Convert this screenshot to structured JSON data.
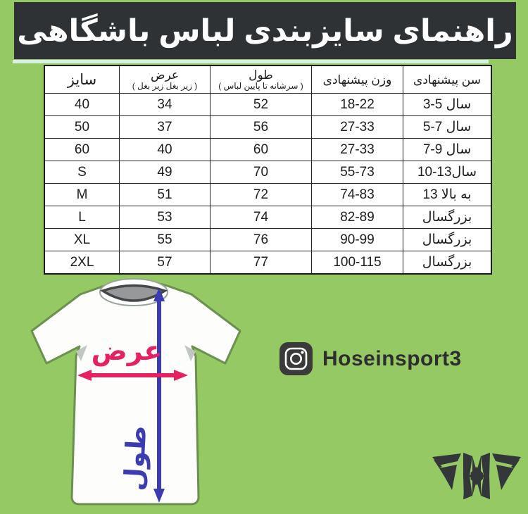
{
  "colors": {
    "background": "#95c964",
    "header_bg": "#2e3234",
    "header_text": "#ffffff",
    "table_border": "#262626",
    "accent_strip": "#d8efe6",
    "width_arrow": "#e6215f",
    "length_arrow": "#3b3bb2",
    "instagram_bg": "#3a3a3a",
    "logo": "#33373a",
    "collar_gray": "#97989a"
  },
  "header": {
    "title": "راهنمای سایزبندی لباس باشگاهی"
  },
  "table": {
    "columns": [
      {
        "label": "سایز",
        "sub": ""
      },
      {
        "label": "عرض",
        "sub": "( زیر بغل زیر بغل )"
      },
      {
        "label": "طول",
        "sub": "( سرشانه تا پایین لباس )"
      },
      {
        "label": "وزن پیشنهادی",
        "sub": ""
      },
      {
        "label": "سن پیشنهادی",
        "sub": ""
      }
    ],
    "rows": [
      [
        "40",
        "34",
        "52",
        "18-22",
        "3-5 سال"
      ],
      [
        "50",
        "37",
        "56",
        "27-33",
        "5-7 سال"
      ],
      [
        "60",
        "40",
        "60",
        "27-33",
        "7-9 سال"
      ],
      [
        "S",
        "49",
        "70",
        "55-73",
        "10-13سال"
      ],
      [
        "M",
        "51",
        "72",
        "74-83",
        "13 به بالا"
      ],
      [
        "L",
        "53",
        "74",
        "82-89",
        "بزرگسال"
      ],
      [
        "XL",
        "55",
        "76",
        "90-99",
        "بزرگسال"
      ],
      [
        "2XL",
        "57",
        "77",
        "100-115",
        "بزرگسال"
      ]
    ]
  },
  "diagram": {
    "width_label": "عرض",
    "length_label": "طول"
  },
  "instagram": {
    "handle": "Hoseinsport3"
  }
}
